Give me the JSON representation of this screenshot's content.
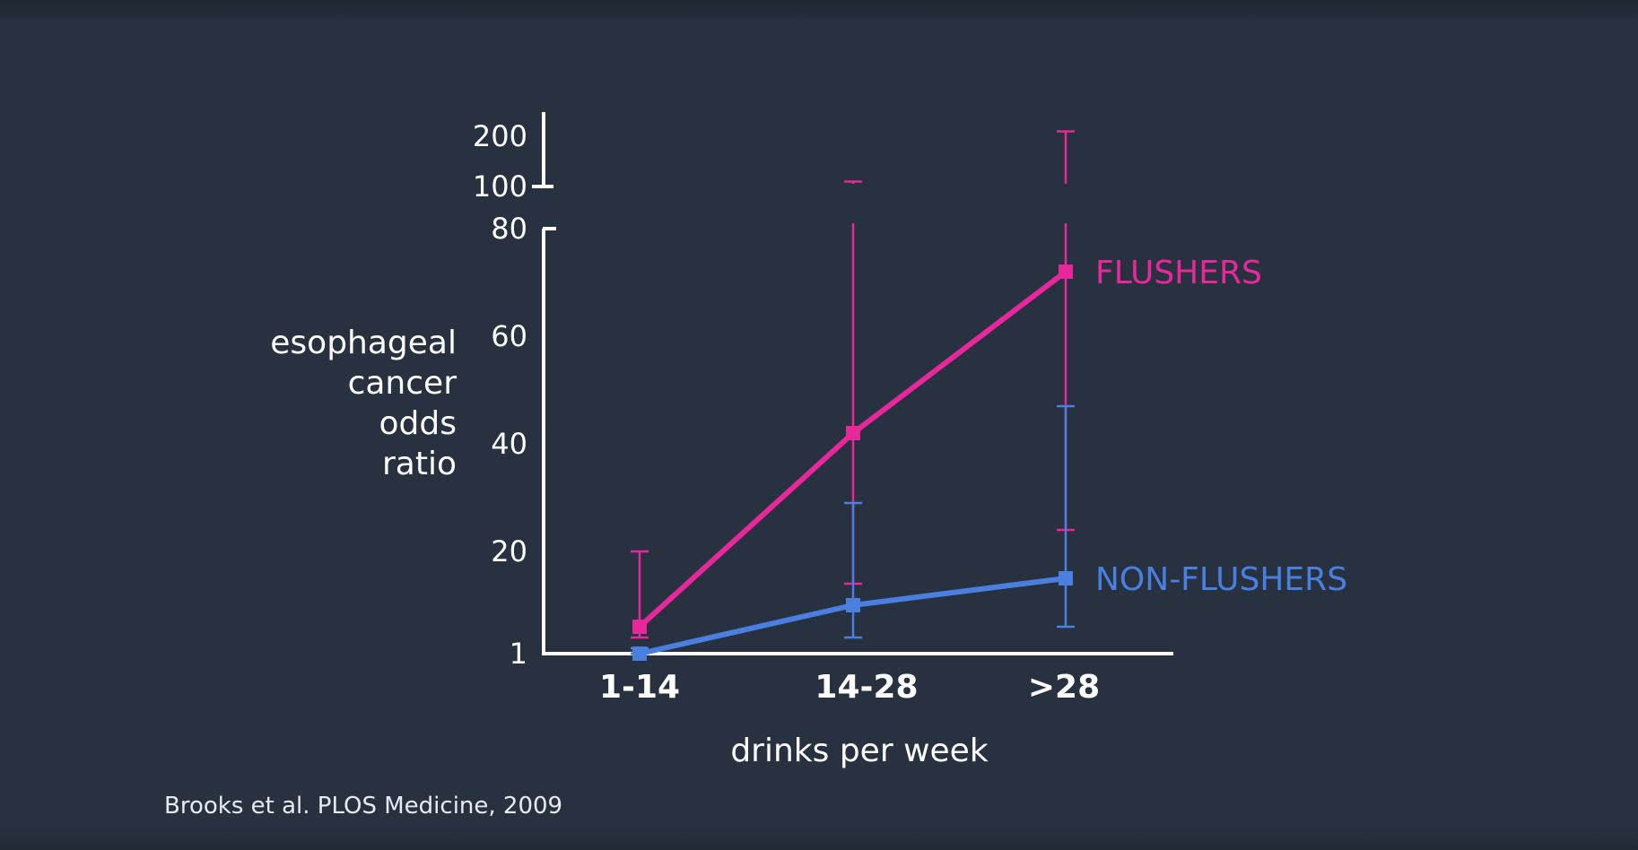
{
  "chart_data": {
    "type": "line",
    "categories": [
      "1-14",
      "14-28",
      ">28"
    ],
    "xlabel": "drinks per week",
    "ylabel_lines": [
      "esophageal",
      "cancer",
      "odds",
      "ratio"
    ],
    "yticks_lower": [
      1,
      20,
      40,
      60,
      80
    ],
    "yticks_upper": [
      100,
      200
    ],
    "ylim": [
      1,
      200
    ],
    "axis_break": [
      80,
      100
    ],
    "grid": false,
    "series": [
      {
        "name": "FLUSHERS",
        "color": "#e8279b",
        "values": [
          6,
          42,
          72
        ],
        "error_low": [
          4,
          14,
          24
        ],
        "error_high": [
          20,
          107,
          214
        ]
      },
      {
        "name": "NON-FLUSHERS",
        "color": "#4a7fe0",
        "values": [
          1,
          10,
          15
        ],
        "error_low": [
          1,
          4,
          6
        ],
        "error_high": [
          2,
          29,
          47
        ]
      }
    ]
  },
  "source": "Brooks et al. PLOS Medicine, 2009"
}
